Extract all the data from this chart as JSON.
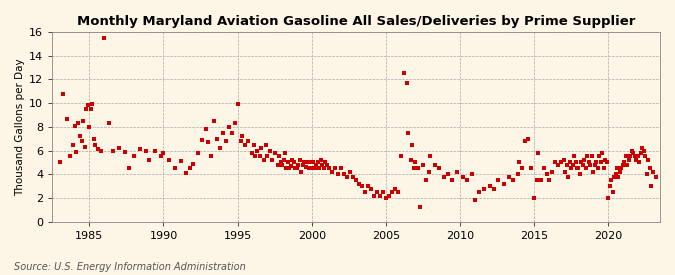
{
  "title": "Monthly Maryland Aviation Gasoline All Sales/Deliveries by Prime Supplier",
  "ylabel": "Thousand Gallons per Day",
  "source": "Source: U.S. Energy Information Administration",
  "bg_color": "#fdf5e6",
  "marker_color": "#cc0000",
  "marker_size": 5,
  "xlim": [
    1982.5,
    2023.5
  ],
  "ylim": [
    0,
    16
  ],
  "xticks": [
    1985,
    1990,
    1995,
    2000,
    2005,
    2010,
    2015,
    2020
  ],
  "yticks": [
    0,
    2,
    4,
    6,
    8,
    10,
    12,
    14,
    16
  ],
  "data_points": [
    [
      1983.0,
      5.0
    ],
    [
      1983.2,
      10.8
    ],
    [
      1983.5,
      8.7
    ],
    [
      1983.7,
      5.5
    ],
    [
      1983.9,
      6.5
    ],
    [
      1984.0,
      8.1
    ],
    [
      1984.1,
      5.9
    ],
    [
      1984.2,
      8.3
    ],
    [
      1984.4,
      7.2
    ],
    [
      1984.5,
      6.8
    ],
    [
      1984.6,
      8.5
    ],
    [
      1984.7,
      6.3
    ],
    [
      1984.8,
      9.5
    ],
    [
      1984.9,
      9.8
    ],
    [
      1985.0,
      8.0
    ],
    [
      1985.1,
      9.5
    ],
    [
      1985.2,
      9.9
    ],
    [
      1985.3,
      7.0
    ],
    [
      1985.4,
      6.5
    ],
    [
      1985.6,
      6.1
    ],
    [
      1985.8,
      6.0
    ],
    [
      1986.0,
      15.5
    ],
    [
      1986.3,
      8.3
    ],
    [
      1986.6,
      6.0
    ],
    [
      1987.0,
      6.2
    ],
    [
      1987.4,
      5.9
    ],
    [
      1987.7,
      4.5
    ],
    [
      1988.0,
      5.5
    ],
    [
      1988.4,
      6.1
    ],
    [
      1988.8,
      6.0
    ],
    [
      1989.0,
      5.2
    ],
    [
      1989.4,
      6.0
    ],
    [
      1989.8,
      5.5
    ],
    [
      1990.0,
      5.8
    ],
    [
      1990.4,
      5.2
    ],
    [
      1990.8,
      4.5
    ],
    [
      1991.2,
      5.1
    ],
    [
      1991.5,
      4.1
    ],
    [
      1991.8,
      4.5
    ],
    [
      1992.0,
      4.9
    ],
    [
      1992.3,
      5.8
    ],
    [
      1992.6,
      6.9
    ],
    [
      1992.9,
      7.8
    ],
    [
      1993.0,
      6.7
    ],
    [
      1993.2,
      5.5
    ],
    [
      1993.4,
      8.5
    ],
    [
      1993.6,
      7.0
    ],
    [
      1993.8,
      6.2
    ],
    [
      1994.0,
      7.5
    ],
    [
      1994.2,
      6.8
    ],
    [
      1994.4,
      8.0
    ],
    [
      1994.6,
      7.5
    ],
    [
      1994.8,
      8.3
    ],
    [
      1995.0,
      9.9
    ],
    [
      1995.2,
      6.8
    ],
    [
      1995.3,
      7.2
    ],
    [
      1995.5,
      6.5
    ],
    [
      1995.7,
      6.8
    ],
    [
      1996.0,
      5.8
    ],
    [
      1996.1,
      6.5
    ],
    [
      1996.2,
      5.5
    ],
    [
      1996.3,
      6.0
    ],
    [
      1996.5,
      5.5
    ],
    [
      1996.6,
      6.2
    ],
    [
      1996.8,
      5.2
    ],
    [
      1996.9,
      6.5
    ],
    [
      1997.0,
      5.5
    ],
    [
      1997.2,
      6.0
    ],
    [
      1997.3,
      5.2
    ],
    [
      1997.5,
      5.8
    ],
    [
      1997.7,
      4.8
    ],
    [
      1997.8,
      5.5
    ],
    [
      1997.9,
      5.0
    ],
    [
      1998.0,
      4.8
    ],
    [
      1998.1,
      5.2
    ],
    [
      1998.2,
      5.8
    ],
    [
      1998.3,
      4.5
    ],
    [
      1998.4,
      5.0
    ],
    [
      1998.5,
      4.5
    ],
    [
      1998.6,
      4.7
    ],
    [
      1998.7,
      5.2
    ],
    [
      1998.8,
      5.0
    ],
    [
      1998.9,
      4.5
    ],
    [
      1999.0,
      4.5
    ],
    [
      1999.1,
      4.8
    ],
    [
      1999.2,
      5.2
    ],
    [
      1999.3,
      4.2
    ],
    [
      1999.4,
      4.8
    ],
    [
      1999.5,
      5.0
    ],
    [
      1999.6,
      4.6
    ],
    [
      1999.7,
      5.0
    ],
    [
      1999.8,
      4.5
    ],
    [
      1999.9,
      5.0
    ],
    [
      2000.0,
      4.5
    ],
    [
      2000.1,
      5.0
    ],
    [
      2000.2,
      4.5
    ],
    [
      2000.3,
      4.8
    ],
    [
      2000.4,
      5.0
    ],
    [
      2000.5,
      4.5
    ],
    [
      2000.6,
      5.2
    ],
    [
      2000.7,
      4.8
    ],
    [
      2000.8,
      4.5
    ],
    [
      2000.9,
      5.0
    ],
    [
      2001.0,
      4.8
    ],
    [
      2001.2,
      4.5
    ],
    [
      2001.4,
      4.2
    ],
    [
      2001.6,
      4.5
    ],
    [
      2001.8,
      4.0
    ],
    [
      2002.0,
      4.5
    ],
    [
      2002.2,
      4.0
    ],
    [
      2002.4,
      3.8
    ],
    [
      2002.6,
      4.2
    ],
    [
      2002.8,
      3.8
    ],
    [
      2003.0,
      3.5
    ],
    [
      2003.2,
      3.2
    ],
    [
      2003.4,
      3.0
    ],
    [
      2003.6,
      2.5
    ],
    [
      2003.8,
      3.0
    ],
    [
      2004.0,
      2.8
    ],
    [
      2004.2,
      2.2
    ],
    [
      2004.4,
      2.5
    ],
    [
      2004.6,
      2.2
    ],
    [
      2004.8,
      2.5
    ],
    [
      2005.0,
      2.0
    ],
    [
      2005.2,
      2.2
    ],
    [
      2005.4,
      2.5
    ],
    [
      2005.6,
      2.8
    ],
    [
      2005.8,
      2.5
    ],
    [
      2006.0,
      5.5
    ],
    [
      2006.2,
      12.5
    ],
    [
      2006.4,
      11.7
    ],
    [
      2006.5,
      7.5
    ],
    [
      2006.7,
      5.2
    ],
    [
      2006.8,
      6.5
    ],
    [
      2006.9,
      4.5
    ],
    [
      2007.0,
      5.0
    ],
    [
      2007.2,
      4.5
    ],
    [
      2007.3,
      1.2
    ],
    [
      2007.5,
      4.8
    ],
    [
      2007.7,
      3.5
    ],
    [
      2007.9,
      4.2
    ],
    [
      2008.0,
      5.5
    ],
    [
      2008.3,
      4.8
    ],
    [
      2008.6,
      4.5
    ],
    [
      2008.9,
      3.8
    ],
    [
      2009.2,
      4.0
    ],
    [
      2009.5,
      3.5
    ],
    [
      2009.8,
      4.2
    ],
    [
      2010.2,
      3.8
    ],
    [
      2010.5,
      3.5
    ],
    [
      2010.8,
      4.0
    ],
    [
      2011.0,
      1.8
    ],
    [
      2011.3,
      2.5
    ],
    [
      2011.6,
      2.8
    ],
    [
      2012.0,
      3.0
    ],
    [
      2012.3,
      2.8
    ],
    [
      2012.6,
      3.5
    ],
    [
      2013.0,
      3.2
    ],
    [
      2013.3,
      3.8
    ],
    [
      2013.6,
      3.5
    ],
    [
      2013.9,
      4.0
    ],
    [
      2014.0,
      5.0
    ],
    [
      2014.2,
      4.5
    ],
    [
      2014.4,
      6.8
    ],
    [
      2014.6,
      7.0
    ],
    [
      2014.8,
      4.5
    ],
    [
      2015.0,
      2.0
    ],
    [
      2015.2,
      3.5
    ],
    [
      2015.3,
      5.8
    ],
    [
      2015.5,
      3.5
    ],
    [
      2015.7,
      4.5
    ],
    [
      2015.9,
      4.0
    ],
    [
      2016.0,
      3.5
    ],
    [
      2016.2,
      4.2
    ],
    [
      2016.4,
      5.0
    ],
    [
      2016.6,
      4.8
    ],
    [
      2016.8,
      5.0
    ],
    [
      2017.0,
      5.2
    ],
    [
      2017.1,
      4.2
    ],
    [
      2017.2,
      4.8
    ],
    [
      2017.3,
      3.8
    ],
    [
      2017.4,
      5.0
    ],
    [
      2017.5,
      4.5
    ],
    [
      2017.6,
      4.8
    ],
    [
      2017.7,
      5.5
    ],
    [
      2017.8,
      5.0
    ],
    [
      2017.9,
      4.5
    ],
    [
      2018.0,
      4.5
    ],
    [
      2018.1,
      4.0
    ],
    [
      2018.2,
      5.0
    ],
    [
      2018.3,
      4.8
    ],
    [
      2018.4,
      5.2
    ],
    [
      2018.5,
      4.5
    ],
    [
      2018.6,
      5.5
    ],
    [
      2018.7,
      5.0
    ],
    [
      2018.8,
      4.8
    ],
    [
      2018.9,
      5.5
    ],
    [
      2019.0,
      4.2
    ],
    [
      2019.1,
      4.8
    ],
    [
      2019.2,
      5.0
    ],
    [
      2019.3,
      4.5
    ],
    [
      2019.4,
      5.5
    ],
    [
      2019.5,
      5.0
    ],
    [
      2019.6,
      5.8
    ],
    [
      2019.7,
      4.5
    ],
    [
      2019.8,
      5.2
    ],
    [
      2019.9,
      5.0
    ],
    [
      2020.0,
      2.0
    ],
    [
      2020.1,
      3.0
    ],
    [
      2020.2,
      3.5
    ],
    [
      2020.3,
      2.5
    ],
    [
      2020.4,
      3.8
    ],
    [
      2020.5,
      4.0
    ],
    [
      2020.6,
      4.5
    ],
    [
      2020.7,
      3.8
    ],
    [
      2020.8,
      4.2
    ],
    [
      2020.9,
      4.5
    ],
    [
      2021.0,
      4.8
    ],
    [
      2021.1,
      5.0
    ],
    [
      2021.2,
      5.5
    ],
    [
      2021.3,
      4.8
    ],
    [
      2021.4,
      5.2
    ],
    [
      2021.5,
      5.5
    ],
    [
      2021.6,
      6.0
    ],
    [
      2021.7,
      5.8
    ],
    [
      2021.8,
      5.5
    ],
    [
      2021.9,
      5.2
    ],
    [
      2022.0,
      5.5
    ],
    [
      2022.1,
      5.0
    ],
    [
      2022.2,
      5.8
    ],
    [
      2022.3,
      6.2
    ],
    [
      2022.4,
      6.0
    ],
    [
      2022.5,
      5.5
    ],
    [
      2022.6,
      4.0
    ],
    [
      2022.7,
      5.2
    ],
    [
      2022.8,
      4.5
    ],
    [
      2022.9,
      3.0
    ],
    [
      2023.0,
      4.2
    ],
    [
      2023.2,
      3.8
    ]
  ]
}
